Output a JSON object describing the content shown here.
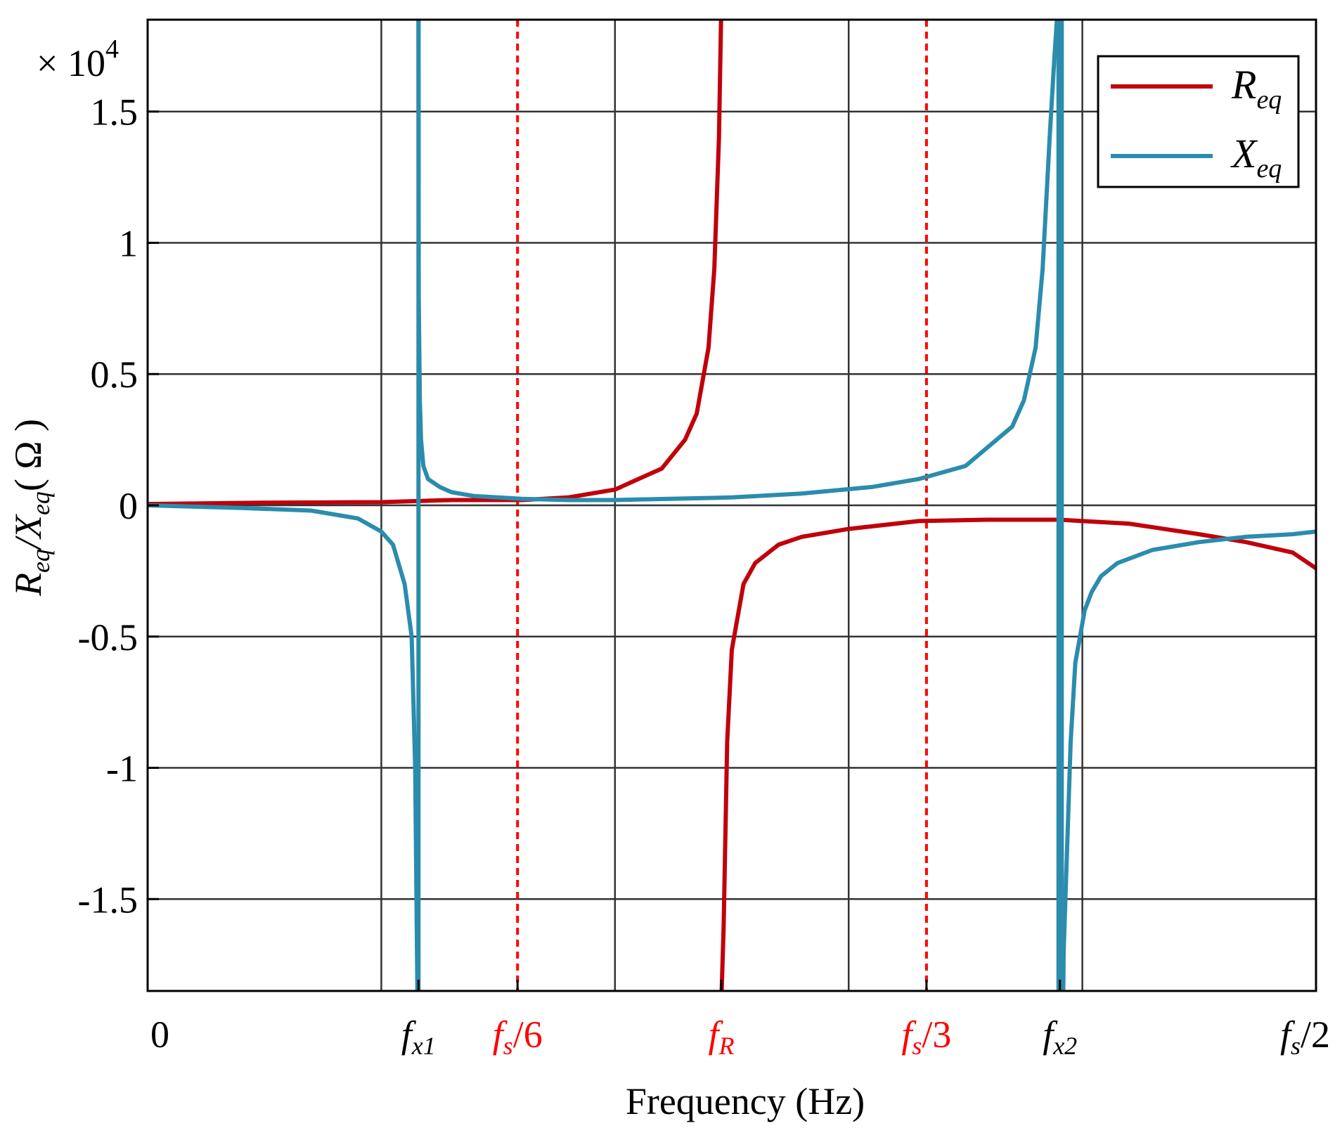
{
  "chart_data": {
    "type": "line",
    "title": "",
    "xlabel": "Frequency (Hz)",
    "ylabel": "Req/Xeq( Ω )",
    "ylabel_parts": {
      "r": "R",
      "r_sub": "eq",
      "sep": "/",
      "x": "X",
      "x_sub": "eq",
      "unit": "( Ω )"
    },
    "y_multiplier": "× 10",
    "y_multiplier_exp": "4",
    "ylim": [
      -1.85,
      1.85
    ],
    "xlim": [
      0,
      0.5
    ],
    "grid": true,
    "legend_position": "top-right",
    "y_ticks": [
      {
        "value": 1.5,
        "label": "1.5"
      },
      {
        "value": 1,
        "label": "1"
      },
      {
        "value": 0.5,
        "label": "0.5"
      },
      {
        "value": 0,
        "label": "0"
      },
      {
        "value": -0.5,
        "label": "-0.5"
      },
      {
        "value": -1,
        "label": "-1"
      },
      {
        "value": -1.5,
        "label": "-1.5"
      }
    ],
    "x_gridlines": [
      0.1,
      0.2,
      0.3,
      0.4
    ],
    "x_ticks": [
      {
        "value": 0,
        "main": "0",
        "sub": "",
        "rest": "",
        "color": "#000000",
        "italic": false
      },
      {
        "value": 0.1159,
        "main": "f",
        "sub": "x1",
        "rest": "",
        "color": "#000000",
        "italic": true
      },
      {
        "value": 0.1583,
        "main": "f",
        "sub": "s",
        "rest": "/6",
        "color": "#ff0000",
        "italic": true
      },
      {
        "value": 0.2455,
        "main": "f",
        "sub": "R",
        "rest": "",
        "color": "#ff0000",
        "italic": true
      },
      {
        "value": 0.3333,
        "main": "f",
        "sub": "s",
        "rest": "/3",
        "color": "#ff0000",
        "italic": true
      },
      {
        "value": 0.3904,
        "main": "f",
        "sub": "x2",
        "rest": "",
        "color": "#000000",
        "italic": true
      },
      {
        "value": 0.5,
        "main": "f",
        "sub": "s",
        "rest": "/2",
        "color": "#000000",
        "italic": true
      }
    ],
    "reference_lines": [
      {
        "x": 0.1583,
        "color": "#ff0000",
        "style": "dashed"
      },
      {
        "x": 0.3333,
        "color": "#ff0000",
        "style": "dashed"
      }
    ],
    "series": [
      {
        "name": "Req",
        "legend_main": "R",
        "legend_sub": "eq",
        "color": "#c0000b",
        "segments": [
          {
            "x": [
              0,
              0.05,
              0.1,
              0.13,
              0.16,
              0.18,
              0.2,
              0.21,
              0.22,
              0.23,
              0.235,
              0.24,
              0.2425,
              0.2445,
              0.2455
            ],
            "y": [
              0.005,
              0.01,
              0.012,
              0.02,
              0.02,
              0.03,
              0.06,
              0.1,
              0.14,
              0.25,
              0.35,
              0.6,
              0.9,
              1.4,
              1.9
            ]
          },
          {
            "x": [
              0.2455,
              0.2465,
              0.248,
              0.25,
              0.255,
              0.26,
              0.27,
              0.28,
              0.3,
              0.33,
              0.36,
              0.39,
              0.42,
              0.45,
              0.47,
              0.49,
              0.5
            ],
            "y": [
              -1.9,
              -1.6,
              -0.9,
              -0.55,
              -0.3,
              -0.22,
              -0.15,
              -0.12,
              -0.09,
              -0.06,
              -0.055,
              -0.055,
              -0.07,
              -0.11,
              -0.14,
              -0.18,
              -0.24
            ]
          }
        ]
      },
      {
        "name": "Xeq",
        "legend_main": "X",
        "legend_sub": "eq",
        "color": "#2b8cad",
        "segments": [
          {
            "x": [
              0,
              0.04,
              0.07,
              0.09,
              0.1,
              0.105,
              0.11,
              0.113,
              0.1145,
              0.1155
            ],
            "y": [
              0.0,
              -0.01,
              -0.02,
              -0.05,
              -0.1,
              -0.15,
              -0.3,
              -0.5,
              -1.0,
              -1.9
            ]
          },
          {
            "x": [
              0.1159,
              0.116,
              0.1165,
              0.117,
              0.118,
              0.12,
              0.125,
              0.13,
              0.14,
              0.15,
              0.16,
              0.18,
              0.2,
              0.25,
              0.28,
              0.31,
              0.33,
              0.35,
              0.37,
              0.375,
              0.38,
              0.383,
              0.386,
              0.388,
              0.3895
            ],
            "y": [
              1.9,
              0.8,
              0.4,
              0.25,
              0.15,
              0.1,
              0.07,
              0.05,
              0.035,
              0.03,
              0.025,
              0.02,
              0.02,
              0.03,
              0.045,
              0.07,
              0.1,
              0.15,
              0.3,
              0.4,
              0.6,
              0.9,
              1.4,
              1.7,
              1.9
            ]
          },
          {
            "x": [
              0.3918,
              0.392,
              0.3935,
              0.395,
              0.397,
              0.399,
              0.401,
              0.404,
              0.408,
              0.415,
              0.43,
              0.45,
              0.47,
              0.49,
              0.5
            ],
            "y": [
              -1.9,
              -1.7,
              -1.3,
              -0.9,
              -0.6,
              -0.5,
              -0.4,
              -0.33,
              -0.27,
              -0.22,
              -0.17,
              -0.14,
              -0.12,
              -0.11,
              -0.1
            ]
          },
          {
            "x": [
              0.1159,
              0.1159
            ],
            "y": [
              -1.9,
              1.9
            ]
          },
          {
            "x": [
              0.3898,
              0.3898
            ],
            "y": [
              -1.9,
              1.9
            ]
          },
          {
            "x": [
              0.3912,
              0.3912
            ],
            "y": [
              -1.9,
              1.9
            ]
          }
        ]
      }
    ]
  }
}
